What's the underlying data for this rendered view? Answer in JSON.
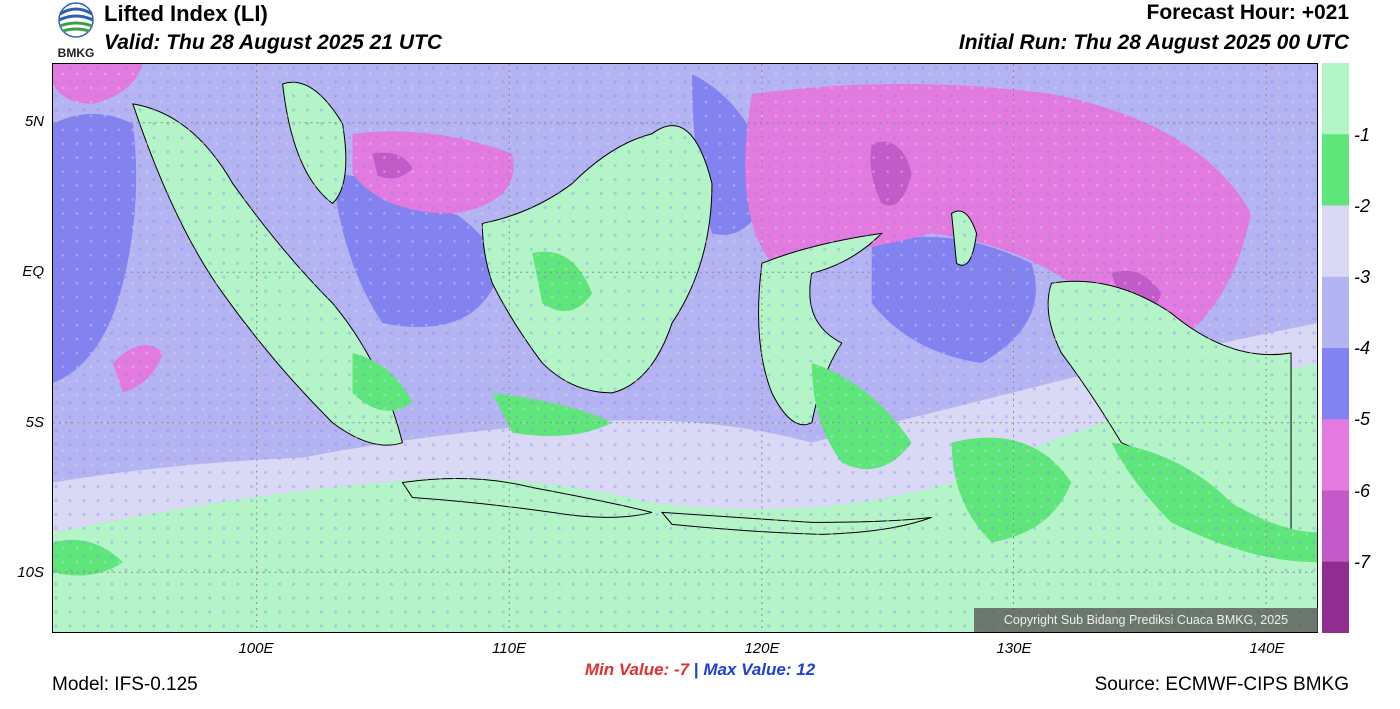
{
  "header": {
    "title": "Lifted Index (LI)",
    "valid": "Valid: Thu 28 August 2025 21 UTC",
    "forecast_hour": "Forecast Hour: +021",
    "initial_run": "Initial Run: Thu 28 August 2025 00 UTC",
    "logo_text": "BMKG"
  },
  "colorbar": {
    "levels": [
      "-1",
      "-2",
      "-3",
      "-4",
      "-5",
      "-6",
      "-7"
    ],
    "colors": [
      "#b4f5c8",
      "#5ee67a",
      "#d9d9f6",
      "#b4b4f2",
      "#8282f0",
      "#e37ae0",
      "#c25ac8",
      "#902d90"
    ]
  },
  "axes": {
    "lat_labels": [
      "5N",
      "EQ",
      "5S",
      "10S"
    ],
    "lon_labels": [
      "100E",
      "110E",
      "120E",
      "130E",
      "140E"
    ]
  },
  "stats": {
    "min_label": "Min Value:",
    "min_value": "-7",
    "separator": "|",
    "max_label": "Max Value:",
    "max_value": "12"
  },
  "footer": {
    "model": "Model: IFS-0.125",
    "source": "Source: ECMWF-CIPS BMKG",
    "copyright": "Copyright Sub Bidang Prediksi Cuaca BMKG, 2025"
  }
}
